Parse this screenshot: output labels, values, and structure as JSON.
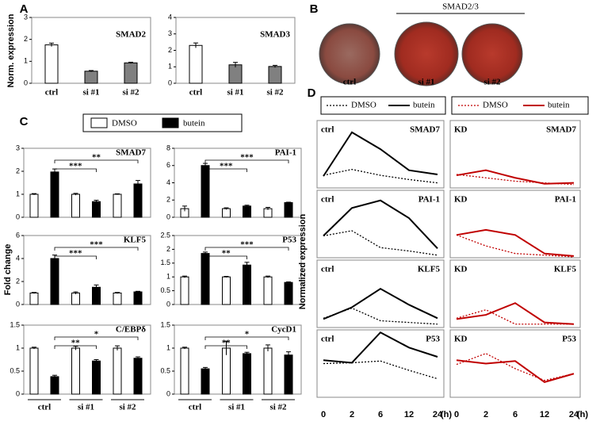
{
  "panel_labels": [
    "A",
    "B",
    "C",
    "D"
  ],
  "panel_b": {
    "group_label": "SMAD2/3",
    "plates": [
      "ctrl",
      "si #1",
      "si #2"
    ]
  },
  "chart_data": [
    {
      "type": "bar",
      "ylabel": "Norm. expression",
      "categories": [
        "ctrl",
        "si #1",
        "si #2"
      ],
      "colors": [
        "#ffffff",
        "#808080",
        "#808080"
      ],
      "panels": [
        {
          "title": "SMAD2",
          "ylim": [
            0,
            3
          ],
          "yticks": [
            0,
            1,
            2,
            3
          ],
          "values": [
            1.75,
            0.55,
            0.93
          ],
          "errors": [
            0.08,
            0.03,
            0.03
          ]
        },
        {
          "title": "SMAD3",
          "ylim": [
            0,
            4
          ],
          "yticks": [
            0,
            1,
            2,
            3,
            4
          ],
          "values": [
            2.3,
            1.12,
            1.02
          ],
          "errors": [
            0.15,
            0.15,
            0.07
          ]
        }
      ]
    },
    {
      "type": "grouped_bar",
      "ylabel": "Fold change",
      "categories": [
        "ctrl",
        "si #1",
        "si #2"
      ],
      "series": [
        {
          "name": "DMSO",
          "color": "#ffffff"
        },
        {
          "name": "butein",
          "color": "#000000"
        }
      ],
      "panels": [
        {
          "title": "SMAD7",
          "ylim": [
            0,
            3
          ],
          "yticks": [
            0,
            1,
            2,
            3
          ],
          "values": [
            [
              1,
              1,
              1
            ],
            [
              1.97,
              0.68,
              1.45
            ]
          ],
          "errors": [
            [
              0.03,
              0.04,
              0.02
            ],
            [
              0.13,
              0.06,
              0.15
            ]
          ],
          "significance": [
            "***",
            "**"
          ]
        },
        {
          "title": "PAI-1",
          "ylim": [
            0,
            8
          ],
          "yticks": [
            0,
            2,
            4,
            6,
            8
          ],
          "values": [
            [
              1,
              1,
              1
            ],
            [
              6,
              1.3,
              1.7
            ]
          ],
          "errors": [
            [
              0.3,
              0.1,
              0.15
            ],
            [
              0.25,
              0.1,
              0.05
            ]
          ],
          "significance": [
            "***",
            "***"
          ]
        },
        {
          "title": "KLF5",
          "ylim": [
            0,
            6
          ],
          "yticks": [
            0,
            2,
            4,
            6
          ],
          "values": [
            [
              1,
              1,
              1
            ],
            [
              4,
              1.5,
              1.1
            ]
          ],
          "errors": [
            [
              0.05,
              0.1,
              0.05
            ],
            [
              0.3,
              0.2,
              0.05
            ]
          ],
          "significance": [
            "***",
            "***"
          ]
        },
        {
          "title": "P53",
          "ylim": [
            0,
            2.5
          ],
          "yticks": [
            0,
            0.5,
            1,
            1.5,
            2,
            2.5
          ],
          "values": [
            [
              1,
              1,
              1
            ],
            [
              1.85,
              1.43,
              0.8
            ]
          ],
          "errors": [
            [
              0.03,
              0.02,
              0.03
            ],
            [
              0.05,
              0.1,
              0.02
            ]
          ],
          "significance": [
            "**",
            "***"
          ]
        },
        {
          "title": "C/EBPδ",
          "ylim": [
            0,
            1.5
          ],
          "yticks": [
            0,
            0.5,
            1,
            1.5
          ],
          "values": [
            [
              1,
              1,
              1
            ],
            [
              0.38,
              0.72,
              0.78
            ]
          ],
          "errors": [
            [
              0.02,
              0.04,
              0.05
            ],
            [
              0.03,
              0.03,
              0.03
            ]
          ],
          "significance": [
            "**",
            "*"
          ]
        },
        {
          "title": "CycD1",
          "ylim": [
            0,
            1.5
          ],
          "yticks": [
            0,
            0.5,
            1,
            1.5
          ],
          "values": [
            [
              1,
              1,
              1
            ],
            [
              0.55,
              0.88,
              0.85
            ]
          ],
          "errors": [
            [
              0.02,
              0.15,
              0.07
            ],
            [
              0.03,
              0.03,
              0.07
            ]
          ],
          "significance": [
            "**",
            "*"
          ]
        }
      ]
    },
    {
      "type": "line",
      "categories": [
        "0",
        "2",
        "6",
        "12",
        "24"
      ],
      "xlabel": "(h)",
      "ylabel": "Normalized expression",
      "ylim": [
        0,
        4
      ],
      "columns": [
        {
          "group": "ctrl",
          "series": [
            {
              "name": "DMSO",
              "color": "#000000",
              "dash": true
            },
            {
              "name": "butein",
              "color": "#000000",
              "dash": false
            }
          ],
          "panels": [
            {
              "title": "SMAD7",
              "values": [
                [
                  0.75,
                  1.1,
                  0.75,
                  0.5,
                  0.3
                ],
                [
                  0.7,
                  3.3,
                  2.3,
                  1.05,
                  0.8
                ]
              ]
            },
            {
              "title": "PAI-1",
              "values": [
                [
                  1.3,
                  1.6,
                  0.6,
                  0.4,
                  0.15
                ],
                [
                  1.3,
                  2.95,
                  3.4,
                  2.35,
                  0.55
                ]
              ]
            },
            {
              "title": "KLF5",
              "values": [
                [
                  0.55,
                  1.15,
                  0.4,
                  0.3,
                  0.2
                ],
                [
                  0.5,
                  1.2,
                  2.3,
                  1.35,
                  0.55
                ]
              ]
            },
            {
              "title": "P53",
              "values": [
                [
                  2.0,
                  2.05,
                  2.15,
                  1.6,
                  1.1
                ],
                [
                  2.2,
                  2.05,
                  3.85,
                  2.95,
                  2.4
                ]
              ]
            }
          ]
        },
        {
          "group": "KD",
          "series": [
            {
              "name": "DMSO",
              "color": "#c00000",
              "dash": true
            },
            {
              "name": "butein",
              "color": "#c00000",
              "dash": false
            }
          ],
          "panels": [
            {
              "title": "SMAD7",
              "values": [
                [
                  0.8,
                  0.6,
                  0.4,
                  0.3,
                  0.2
                ],
                [
                  0.75,
                  1.05,
                  0.6,
                  0.25,
                  0.3
                ]
              ]
            },
            {
              "title": "PAI-1",
              "values": [
                [
                  1.35,
                  0.7,
                  0.25,
                  0.15,
                  0.05
                ],
                [
                  1.35,
                  1.65,
                  1.35,
                  0.25,
                  0.1
                ]
              ]
            },
            {
              "title": "KLF5",
              "values": [
                [
                  0.55,
                  1.05,
                  0.2,
                  0.2,
                  0.2
                ],
                [
                  0.5,
                  0.75,
                  1.45,
                  0.3,
                  0.2
                ]
              ]
            },
            {
              "title": "P53",
              "values": [
                [
                  1.95,
                  2.6,
                  1.7,
                  1.0,
                  1.4
                ],
                [
                  2.2,
                  2.0,
                  2.15,
                  0.9,
                  1.4
                ]
              ]
            }
          ]
        }
      ]
    }
  ]
}
